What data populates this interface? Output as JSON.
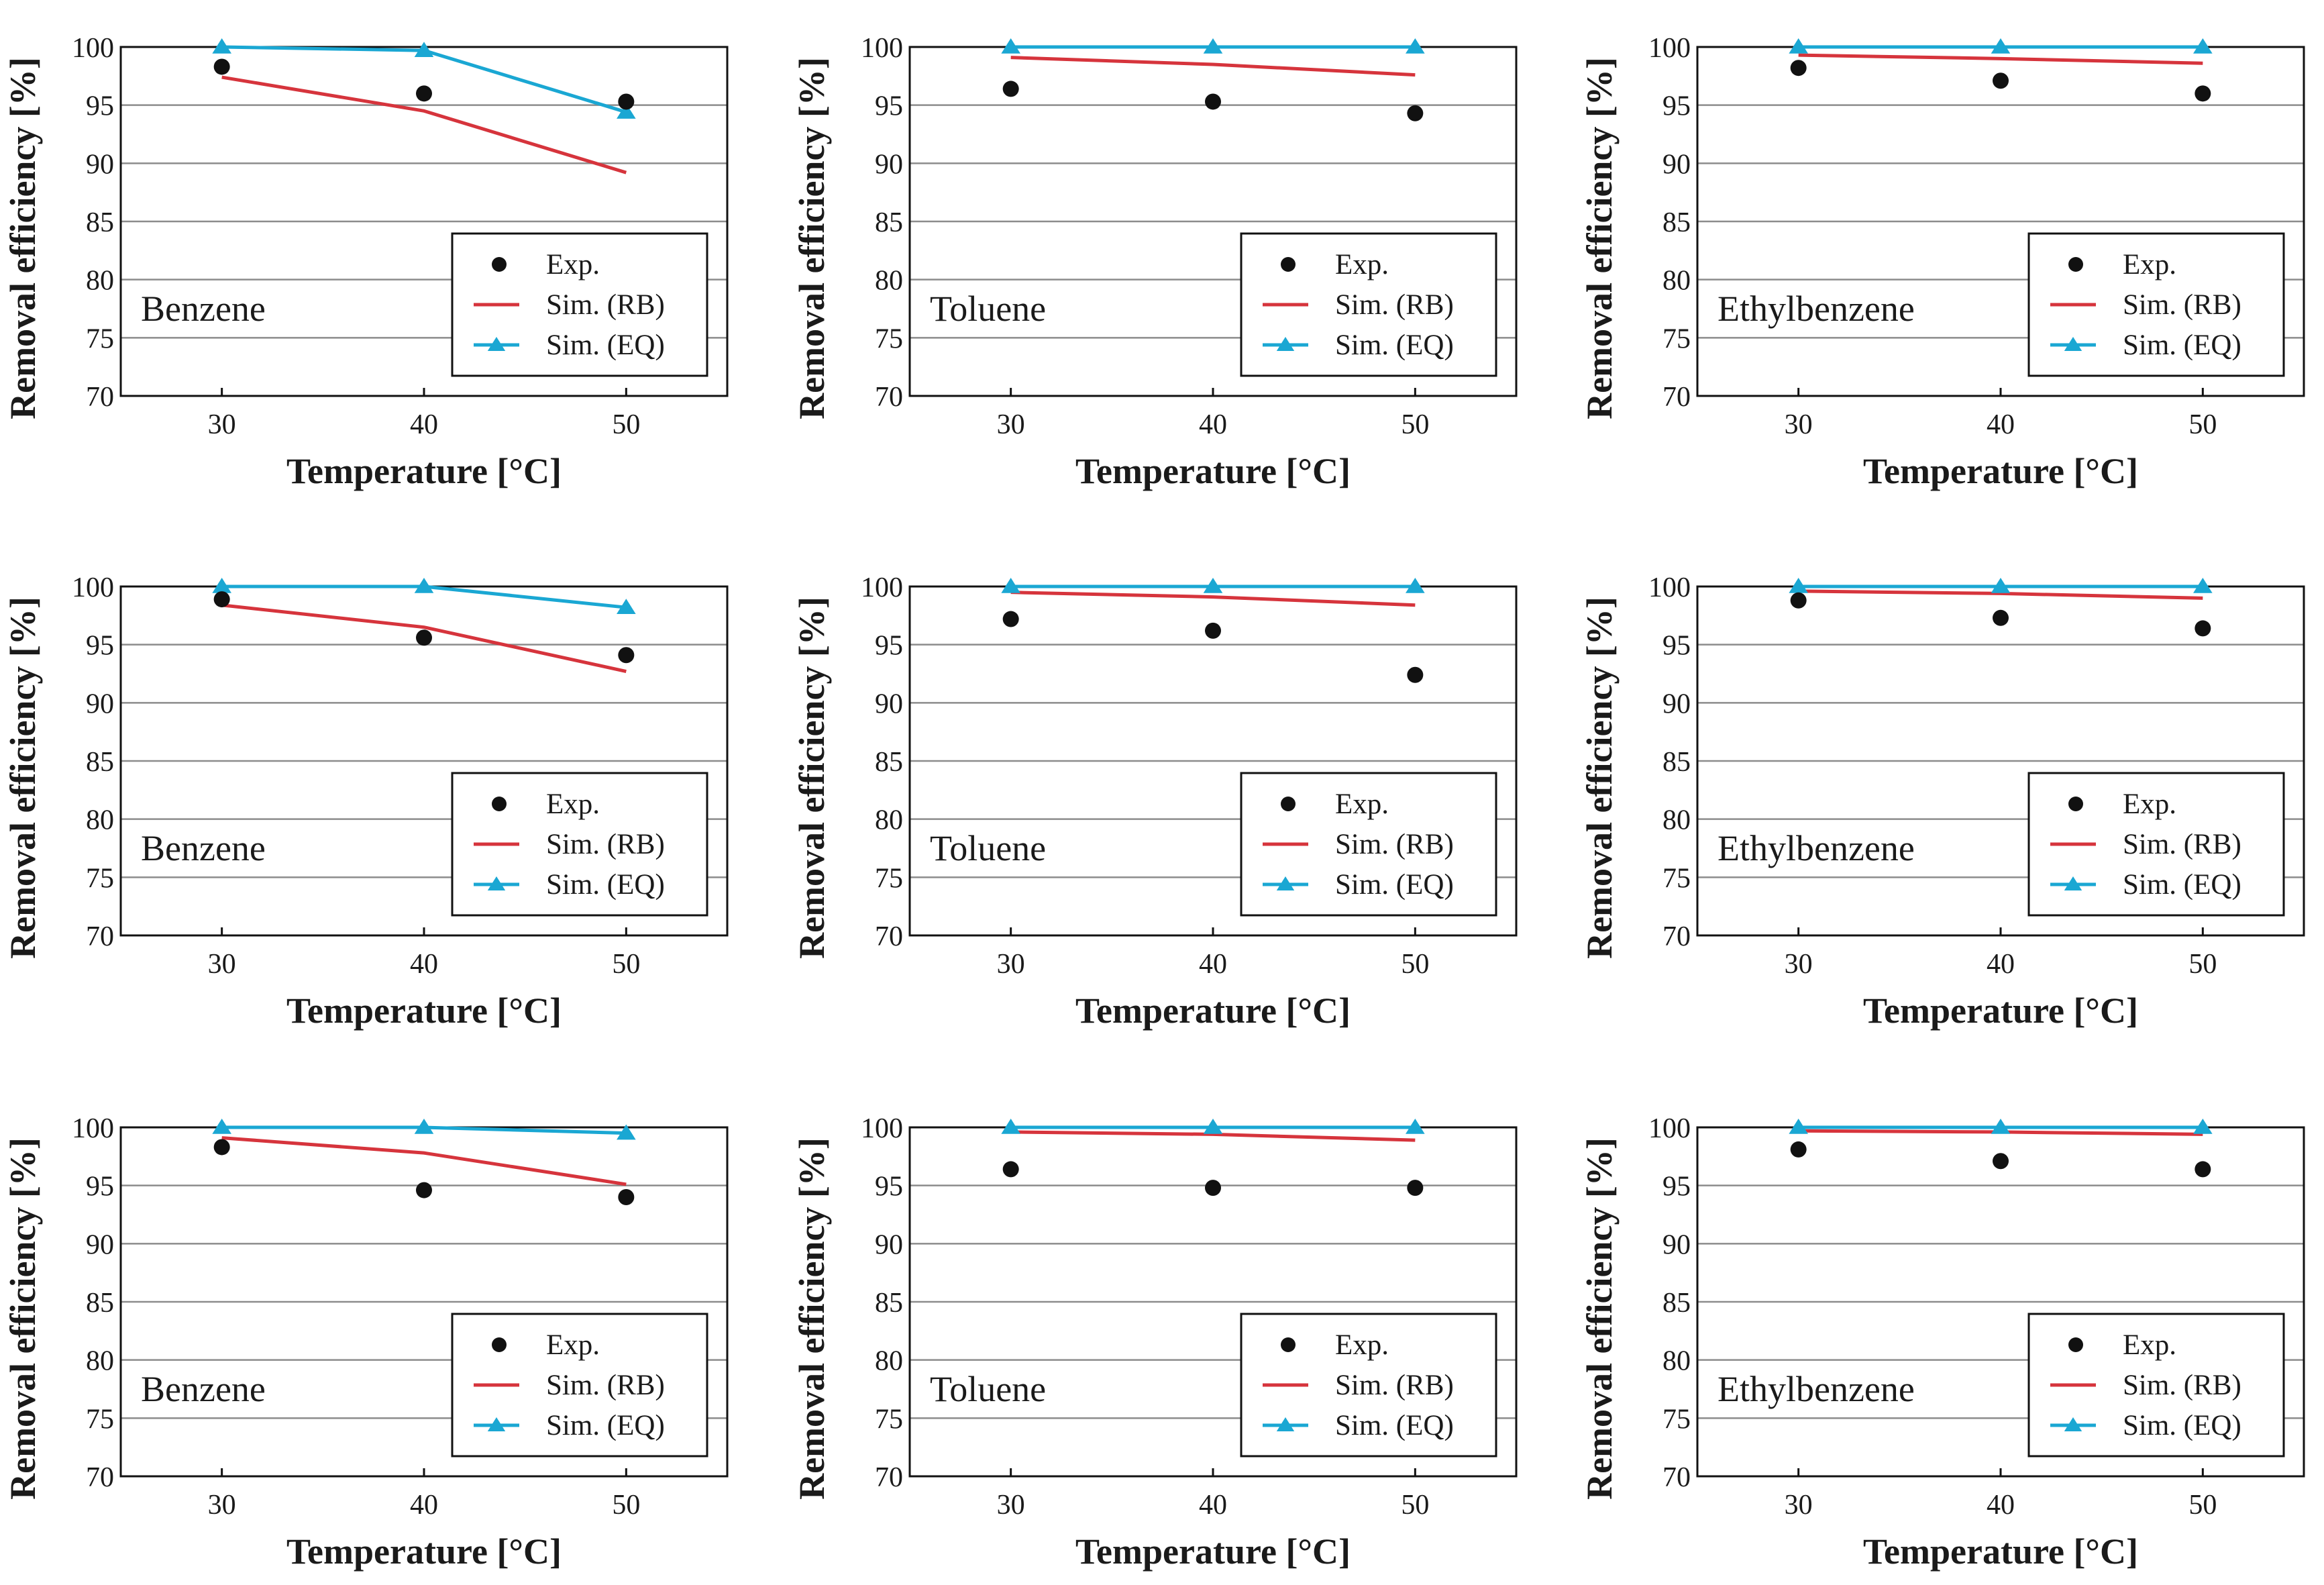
{
  "colors": {
    "exp": "#111111",
    "rb": "#d6343c",
    "eq": "#1aa7d3"
  },
  "shared": {
    "xlabel": "Temperature [°C]",
    "ylabel": "Removal efficiency [%]",
    "x_ticks": [
      "30",
      "40",
      "50"
    ],
    "y_ticks": [
      "70",
      "75",
      "80",
      "85",
      "90",
      "95",
      "100"
    ],
    "legend": {
      "exp": "Exp.",
      "rb": "Sim. (RB)",
      "eq": "Sim. (EQ)"
    }
  },
  "chart_data": [
    {
      "type": "line",
      "label": "Benzene",
      "x": [
        30,
        40,
        50
      ],
      "xlim": [
        25,
        55
      ],
      "ylim": [
        70,
        100
      ],
      "series": [
        {
          "name": "Exp.",
          "values": [
            98.3,
            96.0,
            95.3
          ]
        },
        {
          "name": "Sim. (RB)",
          "values": [
            97.4,
            94.5,
            89.2
          ]
        },
        {
          "name": "Sim. (EQ)",
          "values": [
            100.0,
            99.7,
            94.4
          ]
        }
      ]
    },
    {
      "type": "line",
      "label": "Toluene",
      "x": [
        30,
        40,
        50
      ],
      "xlim": [
        25,
        55
      ],
      "ylim": [
        70,
        100
      ],
      "series": [
        {
          "name": "Exp.",
          "values": [
            96.4,
            95.3,
            94.3
          ]
        },
        {
          "name": "Sim. (RB)",
          "values": [
            99.1,
            98.5,
            97.6
          ]
        },
        {
          "name": "Sim. (EQ)",
          "values": [
            100.0,
            100.0,
            100.0
          ]
        }
      ]
    },
    {
      "type": "line",
      "label": "Ethylbenzene",
      "x": [
        30,
        40,
        50
      ],
      "xlim": [
        25,
        55
      ],
      "ylim": [
        70,
        100
      ],
      "series": [
        {
          "name": "Exp.",
          "values": [
            98.2,
            97.1,
            96.0
          ]
        },
        {
          "name": "Sim. (RB)",
          "values": [
            99.3,
            99.0,
            98.6
          ]
        },
        {
          "name": "Sim. (EQ)",
          "values": [
            100.0,
            100.0,
            100.0
          ]
        }
      ]
    },
    {
      "type": "line",
      "label": "Benzene",
      "x": [
        30,
        40,
        50
      ],
      "xlim": [
        25,
        55
      ],
      "ylim": [
        70,
        100
      ],
      "series": [
        {
          "name": "Exp.",
          "values": [
            98.9,
            95.6,
            94.1
          ]
        },
        {
          "name": "Sim. (RB)",
          "values": [
            98.4,
            96.5,
            92.7
          ]
        },
        {
          "name": "Sim. (EQ)",
          "values": [
            100.0,
            100.0,
            98.2
          ]
        }
      ]
    },
    {
      "type": "line",
      "label": "Toluene",
      "x": [
        30,
        40,
        50
      ],
      "xlim": [
        25,
        55
      ],
      "ylim": [
        70,
        100
      ],
      "series": [
        {
          "name": "Exp.",
          "values": [
            97.2,
            96.2,
            92.4
          ]
        },
        {
          "name": "Sim. (RB)",
          "values": [
            99.5,
            99.1,
            98.4
          ]
        },
        {
          "name": "Sim. (EQ)",
          "values": [
            100.0,
            100.0,
            100.0
          ]
        }
      ]
    },
    {
      "type": "line",
      "label": "Ethylbenzene",
      "x": [
        30,
        40,
        50
      ],
      "xlim": [
        25,
        55
      ],
      "ylim": [
        70,
        100
      ],
      "series": [
        {
          "name": "Exp.",
          "values": [
            98.8,
            97.3,
            96.4
          ]
        },
        {
          "name": "Sim. (RB)",
          "values": [
            99.6,
            99.4,
            99.0
          ]
        },
        {
          "name": "Sim. (EQ)",
          "values": [
            100.0,
            100.0,
            100.0
          ]
        }
      ]
    },
    {
      "type": "line",
      "label": "Benzene",
      "x": [
        30,
        40,
        50
      ],
      "xlim": [
        25,
        55
      ],
      "ylim": [
        70,
        100
      ],
      "series": [
        {
          "name": "Exp.",
          "values": [
            98.3,
            94.6,
            94.0
          ]
        },
        {
          "name": "Sim. (RB)",
          "values": [
            99.1,
            97.8,
            95.1
          ]
        },
        {
          "name": "Sim. (EQ)",
          "values": [
            100.0,
            100.0,
            99.5
          ]
        }
      ]
    },
    {
      "type": "line",
      "label": "Toluene",
      "x": [
        30,
        40,
        50
      ],
      "xlim": [
        25,
        55
      ],
      "ylim": [
        70,
        100
      ],
      "series": [
        {
          "name": "Exp.",
          "values": [
            96.4,
            94.8,
            94.8
          ]
        },
        {
          "name": "Sim. (RB)",
          "values": [
            99.6,
            99.4,
            98.9
          ]
        },
        {
          "name": "Sim. (EQ)",
          "values": [
            100.0,
            100.0,
            100.0
          ]
        }
      ]
    },
    {
      "type": "line",
      "label": "Ethylbenzene",
      "x": [
        30,
        40,
        50
      ],
      "xlim": [
        25,
        55
      ],
      "ylim": [
        70,
        100
      ],
      "series": [
        {
          "name": "Exp.",
          "values": [
            98.1,
            97.1,
            96.4
          ]
        },
        {
          "name": "Sim. (RB)",
          "values": [
            99.7,
            99.6,
            99.4
          ]
        },
        {
          "name": "Sim. (EQ)",
          "values": [
            100.0,
            100.0,
            100.0
          ]
        }
      ]
    }
  ]
}
